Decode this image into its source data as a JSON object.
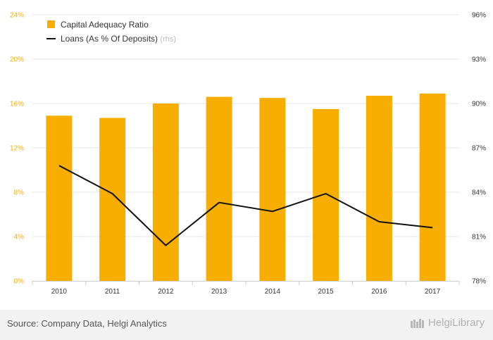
{
  "chart_data": {
    "type": "bar",
    "categories": [
      "2010",
      "2011",
      "2012",
      "2013",
      "2014",
      "2015",
      "2016",
      "2017"
    ],
    "series": [
      {
        "name": "Capital Adequacy Ratio",
        "type": "bar",
        "axis": "left",
        "color": "#f8ae00",
        "values": [
          14.9,
          14.7,
          16.0,
          16.6,
          16.5,
          15.5,
          16.7,
          16.9
        ]
      },
      {
        "name": "Loans (As % Of Deposits)",
        "legend_suffix": "(rhs)",
        "type": "line",
        "axis": "right",
        "color": "#111111",
        "values": [
          85.8,
          83.9,
          80.4,
          83.3,
          82.7,
          83.9,
          82.0,
          81.6
        ]
      }
    ],
    "y_left": {
      "ticks": [
        "0%",
        "4%",
        "8%",
        "12%",
        "16%",
        "20%",
        "24%"
      ],
      "min": 0,
      "max": 24
    },
    "y_right": {
      "ticks": [
        "78%",
        "81%",
        "84%",
        "87%",
        "90%",
        "93%",
        "96%"
      ],
      "min": 78,
      "max": 96
    },
    "legend_position": "top-left",
    "grid": true
  },
  "footer": {
    "source": "Source: Company Data, Helgi Analytics",
    "brand": "HelgiLibrary"
  },
  "colors": {
    "bar": "#f8ae00",
    "line": "#111111",
    "left_axis_text": "#f8ae00",
    "right_axis_text": "#333333",
    "grid": "#e6e6e6"
  }
}
